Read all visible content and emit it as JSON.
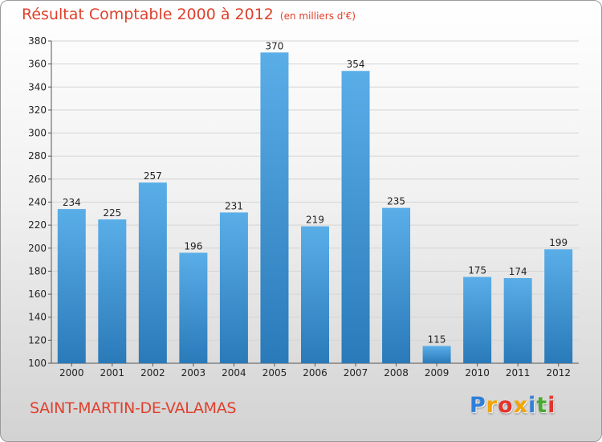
{
  "title": "Résultat Comptable 2000 à 2012",
  "subtitle": "(en milliers d'€)",
  "place": "SAINT-MARTIN-DE-VALAMAS",
  "logo": {
    "text": "Proxiti",
    "letter_colors": [
      "#2f7fd8",
      "#f2a400",
      "#e2342b",
      "#f2a400",
      "#2f7fd8",
      "#48a832",
      "#e2342b"
    ]
  },
  "colors": {
    "bar_top": "#5aaee8",
    "bar_bottom": "#2a7ab9",
    "grid": "#d4d4d4",
    "axis": "#555555"
  },
  "chart_data": {
    "type": "bar",
    "title": "Résultat Comptable 2000 à 2012",
    "subtitle": "(en milliers d'€)",
    "xlabel": "",
    "ylabel": "",
    "categories": [
      "2000",
      "2001",
      "2002",
      "2003",
      "2004",
      "2005",
      "2006",
      "2007",
      "2008",
      "2009",
      "2010",
      "2011",
      "2012"
    ],
    "values": [
      234,
      225,
      257,
      196,
      231,
      370,
      219,
      354,
      235,
      115,
      175,
      174,
      199
    ],
    "ylim": [
      100,
      380
    ],
    "yticks": [
      100,
      120,
      140,
      160,
      180,
      200,
      220,
      240,
      260,
      280,
      300,
      320,
      340,
      360,
      380
    ],
    "grid": true,
    "legend": "none"
  }
}
